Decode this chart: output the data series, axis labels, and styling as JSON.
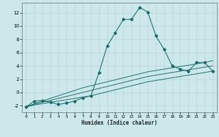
{
  "title": "",
  "xlabel": "Humidex (Indice chaleur)",
  "bg_color": "#cce8eb",
  "grid_color": "#b8d5d8",
  "line_color": "#1a6b6b",
  "xlim": [
    -0.5,
    23.5
  ],
  "ylim": [
    -3.0,
    13.5
  ],
  "xticks": [
    0,
    1,
    2,
    3,
    4,
    5,
    6,
    7,
    8,
    9,
    10,
    11,
    12,
    13,
    14,
    15,
    16,
    17,
    18,
    19,
    20,
    21,
    22,
    23
  ],
  "yticks": [
    -2,
    0,
    2,
    4,
    6,
    8,
    10,
    12
  ],
  "line1_x": [
    0,
    1,
    2,
    3,
    4,
    5,
    6,
    7,
    8,
    9,
    10,
    11,
    12,
    13,
    14,
    15,
    16,
    17,
    18,
    19,
    20,
    21,
    22,
    23
  ],
  "line1_y": [
    -2.2,
    -1.3,
    -1.2,
    -1.5,
    -1.8,
    -1.6,
    -1.3,
    -0.8,
    -0.5,
    3.0,
    7.0,
    9.0,
    11.0,
    11.0,
    12.8,
    12.1,
    8.5,
    6.5,
    4.0,
    3.5,
    3.2,
    4.5,
    4.5,
    3.2
  ],
  "line2_x": [
    0,
    1,
    2,
    3,
    4,
    5,
    6,
    7,
    8,
    9,
    10,
    11,
    12,
    13,
    14,
    15,
    16,
    17,
    18,
    19,
    20,
    21,
    22,
    23
  ],
  "line2_y": [
    -2.2,
    -1.9,
    -1.7,
    -1.5,
    -1.3,
    -1.1,
    -0.9,
    -0.7,
    -0.5,
    -0.2,
    0.1,
    0.4,
    0.7,
    1.0,
    1.3,
    1.6,
    1.8,
    2.0,
    2.2,
    2.4,
    2.6,
    2.8,
    3.0,
    3.2
  ],
  "line3_x": [
    0,
    1,
    2,
    3,
    4,
    5,
    6,
    7,
    8,
    9,
    10,
    11,
    12,
    13,
    14,
    15,
    16,
    17,
    18,
    19,
    20,
    21,
    22,
    23
  ],
  "line3_y": [
    -2.2,
    -1.8,
    -1.5,
    -1.2,
    -0.9,
    -0.6,
    -0.3,
    0.0,
    0.3,
    0.6,
    0.9,
    1.2,
    1.5,
    1.8,
    2.1,
    2.4,
    2.6,
    2.8,
    3.0,
    3.2,
    3.4,
    3.6,
    3.8,
    4.0
  ],
  "line4_x": [
    0,
    1,
    2,
    3,
    4,
    5,
    6,
    7,
    8,
    9,
    10,
    11,
    12,
    13,
    14,
    15,
    16,
    17,
    18,
    19,
    20,
    21,
    22,
    23
  ],
  "line4_y": [
    -2.2,
    -1.7,
    -1.3,
    -0.9,
    -0.5,
    -0.1,
    0.3,
    0.7,
    1.0,
    1.3,
    1.6,
    1.9,
    2.2,
    2.5,
    2.8,
    3.1,
    3.3,
    3.5,
    3.7,
    3.9,
    4.1,
    4.3,
    4.5,
    4.8
  ]
}
